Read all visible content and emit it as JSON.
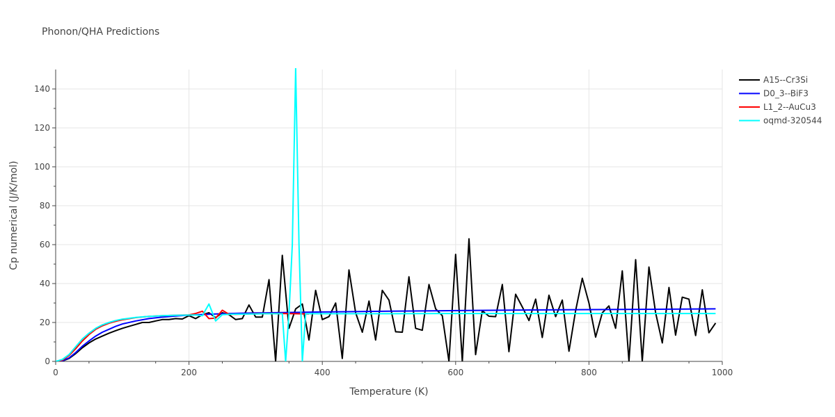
{
  "chart_data": {
    "type": "line",
    "title": "Phonon/QHA Predictions",
    "xlabel": "Temperature (K)",
    "ylabel": "Cp numerical (J/K/mol)",
    "xlim": [
      0,
      1000
    ],
    "ylim": [
      0,
      150
    ],
    "xticks": [
      0,
      200,
      400,
      600,
      800,
      1000
    ],
    "yticks": [
      0,
      20,
      40,
      60,
      80,
      100,
      120,
      140
    ],
    "grid": true,
    "legend_position": "right",
    "series": [
      {
        "name": "A15--Cr3Si",
        "color": "#000000",
        "x": [
          0,
          10,
          20,
          30,
          40,
          50,
          60,
          70,
          80,
          90,
          100,
          110,
          120,
          130,
          140,
          150,
          160,
          170,
          180,
          190,
          200,
          210,
          220,
          230,
          240,
          250,
          260,
          270,
          280,
          290,
          300,
          310,
          320,
          330,
          340,
          350,
          360,
          370,
          380,
          390,
          400,
          410,
          420,
          430,
          440,
          450,
          460,
          470,
          480,
          490,
          500,
          510,
          520,
          530,
          540,
          550,
          560,
          570,
          580,
          590,
          600,
          610,
          620,
          630,
          640,
          650,
          660,
          670,
          680,
          690,
          700,
          710,
          720,
          730,
          740,
          750,
          760,
          770,
          780,
          790,
          800,
          810,
          820,
          830,
          840,
          850,
          860,
          870,
          880,
          890,
          900,
          910,
          920,
          930,
          940,
          950,
          960,
          970,
          980,
          990
        ],
        "y": [
          0,
          0.2,
          1.5,
          4,
          7,
          9.5,
          11.5,
          13,
          14.5,
          15.8,
          17,
          18,
          19,
          20,
          20,
          20.8,
          21.5,
          21.5,
          22,
          21.8,
          23.5,
          22,
          24,
          25,
          22.5,
          25,
          24,
          21.5,
          22,
          29,
          22.8,
          22.8,
          42,
          0,
          54.5,
          17,
          27,
          29.5,
          11,
          36.5,
          21.5,
          23,
          30,
          1.5,
          47,
          25,
          15,
          31,
          11,
          36.5,
          31.5,
          15.2,
          15,
          43.5,
          17,
          16,
          39.5,
          27,
          23.5,
          0,
          55,
          0,
          63,
          3.5,
          26,
          23.2,
          23,
          39.5,
          5,
          34.5,
          28,
          21,
          32,
          12.3,
          34,
          23,
          31.5,
          5.2,
          26,
          42.7,
          30,
          12.5,
          25,
          28.5,
          17,
          46.5,
          0,
          52.3,
          0,
          48.5,
          25,
          9.5,
          38,
          13.5,
          33,
          32,
          13.3,
          36.8,
          14.7,
          19.7
        ]
      },
      {
        "name": "D0_3--BiF3",
        "color": "#0000ff",
        "x": [
          0,
          10,
          20,
          30,
          40,
          50,
          60,
          70,
          80,
          90,
          100,
          120,
          140,
          160,
          180,
          200,
          250,
          300,
          400,
          500,
          600,
          700,
          800,
          900,
          990
        ],
        "y": [
          0,
          0.3,
          1.8,
          4.5,
          7.8,
          10.5,
          13,
          15,
          16.5,
          18,
          19.2,
          20.8,
          22,
          22.8,
          23.3,
          23.8,
          24.5,
          24.9,
          25.4,
          25.8,
          26.1,
          26.4,
          26.6,
          26.8,
          27
        ]
      },
      {
        "name": "L1_2--AuCu3",
        "color": "#ff0000",
        "x": [
          0,
          10,
          20,
          30,
          40,
          50,
          60,
          70,
          80,
          90,
          100,
          120,
          140,
          160,
          180,
          200,
          210,
          220,
          230,
          240,
          250,
          260,
          270,
          280,
          290,
          300,
          320,
          340,
          360,
          380
        ],
        "y": [
          0,
          0.6,
          3,
          6.5,
          10.5,
          13.8,
          16.5,
          18.3,
          19.6,
          20.6,
          21.4,
          22.5,
          23.1,
          23.5,
          23.7,
          23.9,
          24.6,
          25.8,
          22,
          22.2,
          26.3,
          24.2,
          24.2,
          24.3,
          24.4,
          24.5,
          24.6,
          24.6,
          24.5,
          24.4
        ]
      },
      {
        "name": "oqmd-320544",
        "color": "#00ffff",
        "x": [
          0,
          10,
          20,
          30,
          40,
          50,
          60,
          70,
          80,
          90,
          100,
          120,
          140,
          160,
          180,
          200,
          210,
          220,
          230,
          240,
          250,
          260,
          270,
          280,
          290,
          300,
          310,
          320,
          330,
          340,
          345,
          350,
          355,
          360,
          365,
          370,
          375,
          380,
          390,
          400,
          500,
          600,
          700,
          800,
          900,
          990
        ],
        "y": [
          0,
          1,
          3.5,
          7.5,
          11.5,
          14.5,
          17,
          18.8,
          20,
          21,
          21.7,
          22.6,
          23.1,
          23.5,
          23.7,
          23.8,
          23.9,
          23.5,
          29.5,
          20.8,
          24,
          24.2,
          24.3,
          24.3,
          24.4,
          24.4,
          24.5,
          24.5,
          24.5,
          24.5,
          0,
          24.5,
          60,
          150.5,
          60,
          0,
          24.5,
          24.5,
          24.5,
          24.5,
          24.5,
          24.6,
          24.6,
          24.6,
          24.6,
          24.6
        ]
      }
    ]
  }
}
